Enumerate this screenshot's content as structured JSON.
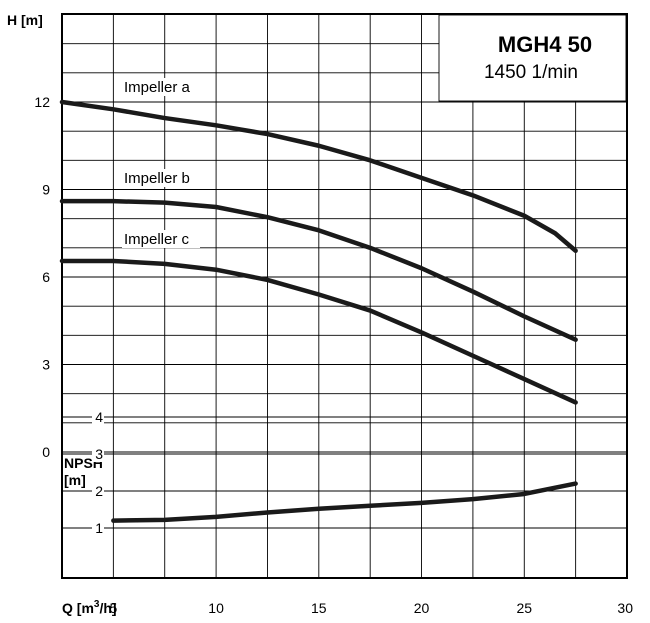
{
  "chart_data": {
    "type": "line",
    "model": "MGH4 50",
    "speed": "1450 1/min",
    "x_axis": {
      "label": "Q [m",
      "label_sup": "3",
      "label_end": "/h]",
      "range": [
        2.5,
        30
      ],
      "ticks": [
        5,
        10,
        15,
        20,
        25,
        30
      ]
    },
    "head_axis": {
      "label": "H [m]",
      "range": [
        0,
        14.5
      ],
      "ticks": [
        0,
        3,
        6,
        9,
        12
      ]
    },
    "npsh_axis": {
      "label_line1": "NPSH",
      "label_line2": "[m]",
      "range": [
        0,
        5
      ],
      "ticks": [
        1,
        2,
        3,
        4
      ]
    },
    "series": [
      {
        "name": "Impeller a",
        "x": [
          2.5,
          5,
          7.5,
          10,
          12.5,
          15,
          17.5,
          20,
          22.5,
          25,
          26.5,
          27.5
        ],
        "y": [
          12.0,
          11.75,
          11.45,
          11.2,
          10.9,
          10.5,
          10.0,
          9.4,
          8.8,
          8.1,
          7.5,
          6.9
        ]
      },
      {
        "name": "Impeller b",
        "x": [
          2.5,
          5,
          7.5,
          10,
          12.5,
          15,
          17.5,
          20,
          22.5,
          25,
          27.5
        ],
        "y": [
          8.6,
          8.6,
          8.55,
          8.4,
          8.05,
          7.6,
          7.0,
          6.3,
          5.5,
          4.65,
          3.85
        ]
      },
      {
        "name": "Impeller c",
        "x": [
          2.5,
          5,
          7.5,
          10,
          12.5,
          15,
          17.5,
          20,
          22.5,
          25,
          27.5
        ],
        "y": [
          6.55,
          6.55,
          6.45,
          6.25,
          5.9,
          5.4,
          4.85,
          4.1,
          3.3,
          2.5,
          1.7
        ]
      }
    ],
    "npsh_series": {
      "x": [
        5,
        7.5,
        10,
        12.5,
        15,
        17.5,
        20,
        22.5,
        25,
        27.5
      ],
      "y": [
        1.2,
        1.22,
        1.3,
        1.42,
        1.52,
        1.6,
        1.68,
        1.78,
        1.92,
        2.2
      ]
    },
    "grid": true
  }
}
